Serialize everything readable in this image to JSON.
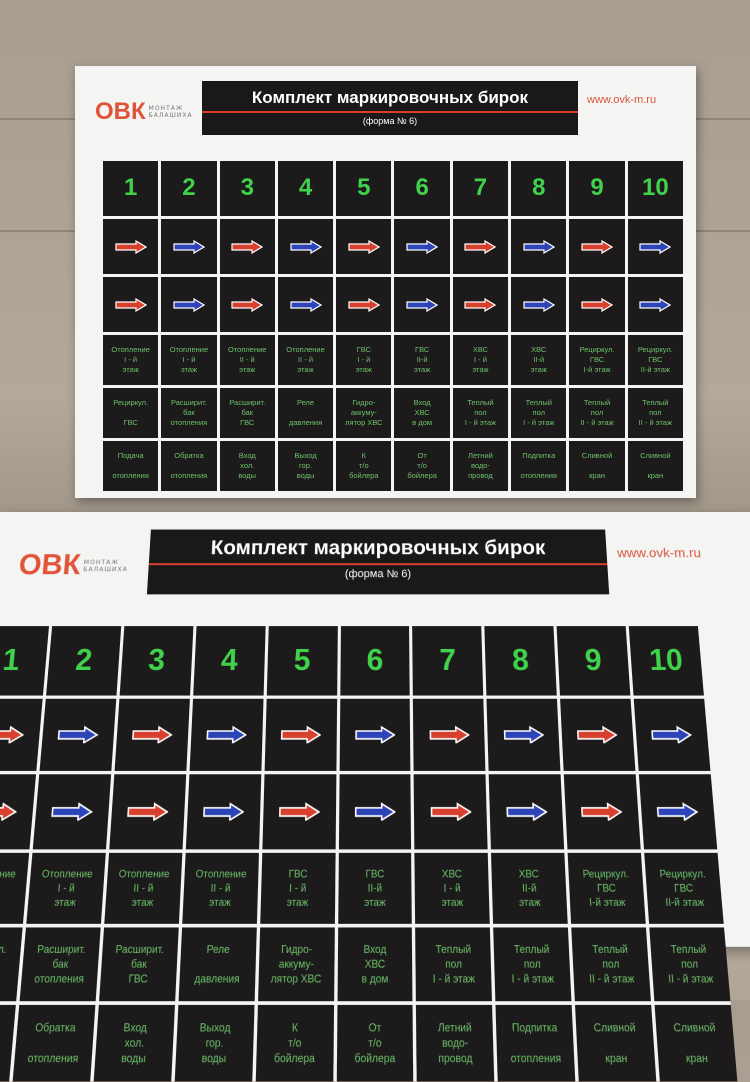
{
  "logo": {
    "brand": "ОВК",
    "sub1": "МОНТАЖ",
    "sub2": "БАЛАШИХА"
  },
  "title": "Комплект маркировочных бирок",
  "subtitle": "(форма № 6)",
  "url": "www.ovk-m.ru",
  "numbers": [
    "1",
    "2",
    "3",
    "4",
    "5",
    "6",
    "7",
    "8",
    "9",
    "10"
  ],
  "arrow_rows": [
    [
      "red",
      "blue",
      "red",
      "blue",
      "red",
      "blue",
      "red",
      "blue",
      "red",
      "blue"
    ],
    [
      "red",
      "blue",
      "red",
      "blue",
      "red",
      "blue",
      "red",
      "blue",
      "red",
      "blue"
    ]
  ],
  "colors": {
    "red": "#d8402e",
    "blue": "#2d44b8",
    "text_green": "#6dc26a",
    "number_green": "#3fd24a"
  },
  "label_rows": [
    [
      "Отопление\nI - й\nэтаж",
      "Отопление\nI - й\nэтаж",
      "Отопление\nII - й\nэтаж",
      "Отопление\nII - й\nэтаж",
      "ГВС\nI - й\nэтаж",
      "ГВС\nII-й\nэтаж",
      "ХВС\nI - й\nэтаж",
      "ХВС\nII-й\nэтаж",
      "Рециркул.\nГВС\nI-й этаж",
      "Рециркул.\nГВС\nII-й этаж"
    ],
    [
      "Рециркул.\n\nГВС",
      "Расширит.\nбак\nотопления",
      "Расширит.\nбак\nГВС",
      "Реле\n\nдавления",
      "Гидро-\nаккуму-\nлятор ХВС",
      "Вход\nХВС\nв дом",
      "Теплый\nпол\nI - й этаж",
      "Теплый\nпол\nI - й этаж",
      "Теплый\nпол\nII - й этаж",
      "Теплый\nпол\nII - й этаж"
    ],
    [
      "Подача\n\nотопления",
      "Обратка\n\nотопления",
      "Вход\nхол.\nводы",
      "Выход\nгор.\nводы",
      "К\nт/о\nбойлера",
      "От\nт/о\nбойлера",
      "Летний\nводо-\nпровод",
      "Подпитка\n\nотопления",
      "Сливной\n\nкран",
      "Сливной\n\nкран"
    ]
  ]
}
